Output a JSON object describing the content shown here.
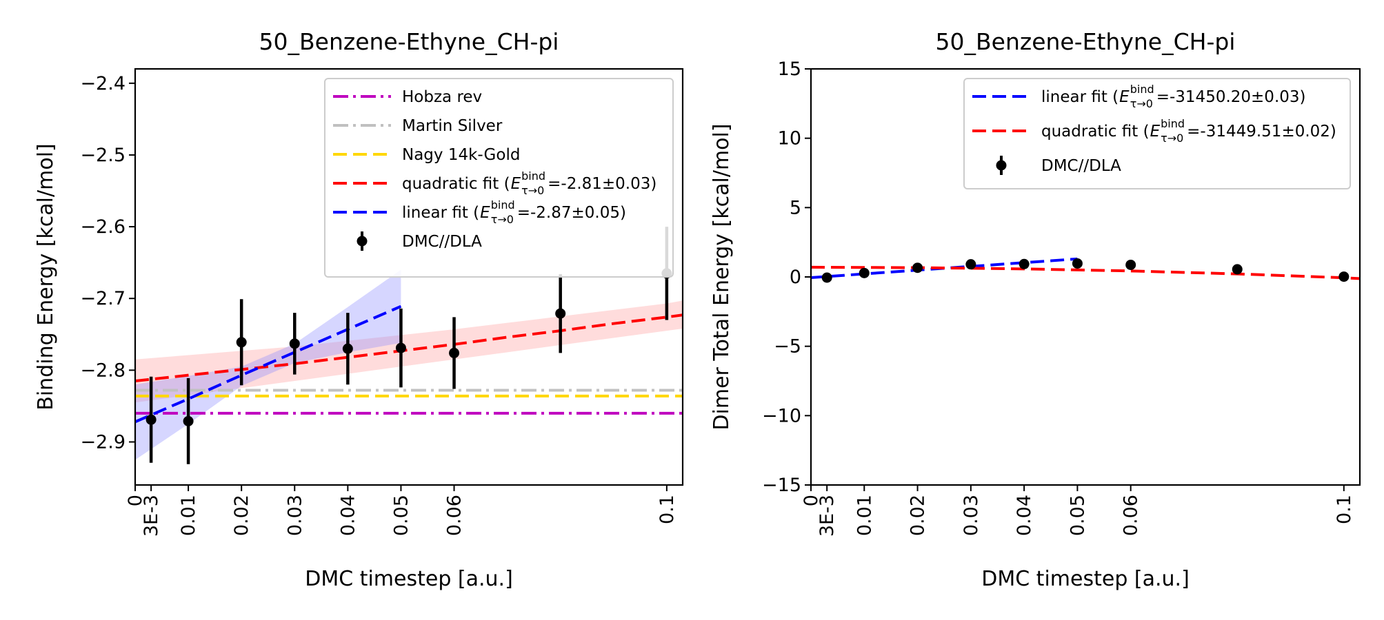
{
  "chart_data": [
    {
      "type": "line",
      "title": "50_Benzene-Ethyne_CH-pi",
      "xlabel": "DMC timestep [a.u.]",
      "ylabel": "Binding Energy [kcal/mol]",
      "xlim": [
        0,
        0.103
      ],
      "ylim": [
        -2.96,
        -2.38
      ],
      "x_ticks": [
        {
          "value": 0,
          "label": "0"
        },
        {
          "value": 0.003,
          "label": "3E-3"
        },
        {
          "value": 0.01,
          "label": "0.01"
        },
        {
          "value": 0.02,
          "label": "0.02"
        },
        {
          "value": 0.03,
          "label": "0.03"
        },
        {
          "value": 0.04,
          "label": "0.04"
        },
        {
          "value": 0.05,
          "label": "0.05"
        },
        {
          "value": 0.06,
          "label": "0.06"
        },
        {
          "value": 0.1,
          "label": "0.1"
        }
      ],
      "y_ticks": [
        {
          "value": -2.4,
          "label": "−2.4"
        },
        {
          "value": -2.5,
          "label": "−2.5"
        },
        {
          "value": -2.6,
          "label": "−2.6"
        },
        {
          "value": -2.7,
          "label": "−2.7"
        },
        {
          "value": -2.8,
          "label": "−2.8"
        },
        {
          "value": -2.9,
          "label": "−2.9"
        }
      ],
      "grid": false,
      "legend_position": "top-right",
      "reference_lines": [
        {
          "name": "Hobza rev",
          "y": -2.86,
          "color": "#bf00bf",
          "style": "dashdot"
        },
        {
          "name": "Martin Silver",
          "y": -2.828,
          "color": "#c0c0c0",
          "style": "dashdot"
        },
        {
          "name": "Nagy 14k-Gold",
          "y": -2.836,
          "color": "#ffd700",
          "style": "dashed"
        }
      ],
      "fits": [
        {
          "name": "quadratic fit",
          "legend_value": " =-2.81±0.03)",
          "color": "#ff0000",
          "band_color": "#ff9a9a",
          "band_opacity": 0.35,
          "x": [
            0,
            0.01,
            0.02,
            0.03,
            0.04,
            0.05,
            0.06,
            0.07,
            0.08,
            0.09,
            0.1,
            0.103
          ],
          "y": [
            -2.815,
            -2.807,
            -2.799,
            -2.791,
            -2.782,
            -2.773,
            -2.764,
            -2.754,
            -2.745,
            -2.735,
            -2.726,
            -2.723
          ],
          "band_upper": [
            -2.785,
            -2.779,
            -2.773,
            -2.767,
            -2.759,
            -2.751,
            -2.743,
            -2.734,
            -2.725,
            -2.716,
            -2.707,
            -2.703
          ],
          "band_lower": [
            -2.845,
            -2.835,
            -2.825,
            -2.815,
            -2.805,
            -2.795,
            -2.785,
            -2.775,
            -2.765,
            -2.755,
            -2.745,
            -2.742
          ]
        },
        {
          "name": "linear fit",
          "legend_value": " =-2.87±0.05)",
          "color": "#0000ff",
          "band_color": "#8a8aff",
          "band_opacity": 0.35,
          "x": [
            0,
            0.01,
            0.02,
            0.03,
            0.04,
            0.05
          ],
          "y": [
            -2.872,
            -2.84,
            -2.807,
            -2.775,
            -2.743,
            -2.711
          ],
          "band_upper": [
            -2.82,
            -2.808,
            -2.795,
            -2.763,
            -2.712,
            -2.66
          ],
          "band_lower": [
            -2.925,
            -2.875,
            -2.822,
            -2.79,
            -2.775,
            -2.762
          ]
        }
      ],
      "legend_tex": "E",
      "legend_tex_sup": "bind",
      "legend_tex_sub": "τ→0",
      "series": [
        {
          "name": "DMC//DLA",
          "color": "#000000",
          "x": [
            0.003,
            0.01,
            0.02,
            0.03,
            0.04,
            0.05,
            0.06,
            0.08,
            0.1
          ],
          "y": [
            -2.869,
            -2.871,
            -2.761,
            -2.763,
            -2.77,
            -2.769,
            -2.776,
            -2.721,
            -2.665
          ],
          "err": [
            0.06,
            0.06,
            0.06,
            0.043,
            0.05,
            0.055,
            0.05,
            0.055,
            0.065
          ]
        }
      ]
    },
    {
      "type": "line",
      "title": "50_Benzene-Ethyne_CH-pi",
      "xlabel": "DMC timestep [a.u.]",
      "ylabel": "Dimer Total Energy [kcal/mol]",
      "xlim": [
        0,
        0.103
      ],
      "ylim": [
        -15,
        15
      ],
      "x_ticks": [
        {
          "value": 0,
          "label": "0"
        },
        {
          "value": 0.003,
          "label": "3E-3"
        },
        {
          "value": 0.01,
          "label": "0.01"
        },
        {
          "value": 0.02,
          "label": "0.02"
        },
        {
          "value": 0.03,
          "label": "0.03"
        },
        {
          "value": 0.04,
          "label": "0.04"
        },
        {
          "value": 0.05,
          "label": "0.05"
        },
        {
          "value": 0.06,
          "label": "0.06"
        },
        {
          "value": 0.1,
          "label": "0.1"
        }
      ],
      "y_ticks": [
        {
          "value": 15,
          "label": "15"
        },
        {
          "value": 10,
          "label": "10"
        },
        {
          "value": 5,
          "label": "5"
        },
        {
          "value": 0,
          "label": "0"
        },
        {
          "value": -5,
          "label": "−5"
        },
        {
          "value": -10,
          "label": "−10"
        },
        {
          "value": -15,
          "label": "−15"
        }
      ],
      "grid": false,
      "legend_position": "top-right",
      "reference_lines": [],
      "fits": [
        {
          "name": "linear fit",
          "legend_value": " =-31450.20±0.03)",
          "color": "#0000ff",
          "x": [
            0,
            0.05
          ],
          "y": [
            -0.05,
            1.3
          ]
        },
        {
          "name": "quadratic fit",
          "legend_value": " =-31449.51±0.02)",
          "color": "#ff0000",
          "x": [
            0,
            0.02,
            0.04,
            0.06,
            0.08,
            0.1,
            0.103
          ],
          "y": [
            0.7,
            0.67,
            0.58,
            0.43,
            0.22,
            -0.06,
            -0.12
          ]
        }
      ],
      "legend_tex": "E",
      "legend_tex_sup": "bind",
      "legend_tex_sub": "τ→0",
      "series": [
        {
          "name": "DMC//DLA",
          "color": "#000000",
          "x": [
            0.003,
            0.01,
            0.02,
            0.03,
            0.04,
            0.05,
            0.06,
            0.08,
            0.1
          ],
          "y": [
            -0.05,
            0.28,
            0.66,
            0.91,
            0.93,
            0.97,
            0.87,
            0.55,
            0.02
          ],
          "err": [
            0.05,
            0.05,
            0.05,
            0.05,
            0.05,
            0.05,
            0.05,
            0.05,
            0.05
          ]
        }
      ]
    }
  ]
}
